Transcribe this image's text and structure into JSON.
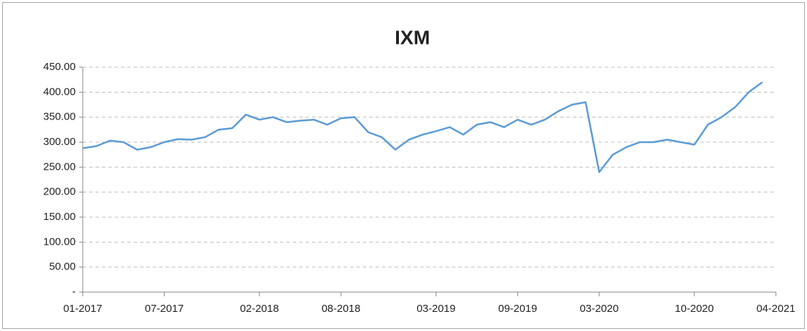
{
  "chart_data": {
    "type": "line",
    "title": "IXM",
    "x": [
      "2017-01",
      "2017-02",
      "2017-03",
      "2017-04",
      "2017-05",
      "2017-06",
      "2017-07",
      "2017-08",
      "2017-09",
      "2017-10",
      "2017-11",
      "2017-12",
      "2018-01",
      "2018-02",
      "2018-03",
      "2018-04",
      "2018-05",
      "2018-06",
      "2018-07",
      "2018-08",
      "2018-09",
      "2018-10",
      "2018-11",
      "2018-12",
      "2019-01",
      "2019-02",
      "2019-03",
      "2019-04",
      "2019-05",
      "2019-06",
      "2019-07",
      "2019-08",
      "2019-09",
      "2019-10",
      "2019-11",
      "2019-12",
      "2020-01",
      "2020-02",
      "2020-03",
      "2020-04",
      "2020-05",
      "2020-06",
      "2020-07",
      "2020-08",
      "2020-09",
      "2020-10",
      "2020-11",
      "2020-12",
      "2021-01",
      "2021-02",
      "2021-03"
    ],
    "series": [
      {
        "name": "IXM",
        "color": "#5b9bd5",
        "values": [
          288,
          292,
          303,
          300,
          285,
          290,
          300,
          306,
          305,
          310,
          325,
          328,
          355,
          345,
          350,
          340,
          343,
          345,
          335,
          348,
          350,
          320,
          310,
          285,
          305,
          315,
          322,
          330,
          315,
          335,
          340,
          330,
          345,
          335,
          345,
          362,
          375,
          380,
          240,
          275,
          290,
          300,
          300,
          305,
          300,
          295,
          335,
          350,
          370,
          400,
          420
        ]
      }
    ],
    "xlim": [
      "2017-01",
      "2021-04"
    ],
    "xticks": [
      {
        "value": "2017-01",
        "label": "01-2017"
      },
      {
        "value": "2017-07",
        "label": "07-2017"
      },
      {
        "value": "2018-02",
        "label": "02-2018"
      },
      {
        "value": "2018-08",
        "label": "08-2018"
      },
      {
        "value": "2019-03",
        "label": "03-2019"
      },
      {
        "value": "2019-09",
        "label": "09-2019"
      },
      {
        "value": "2020-03",
        "label": "03-2020"
      },
      {
        "value": "2020-10",
        "label": "10-2020"
      },
      {
        "value": "2021-04",
        "label": "04-2021"
      }
    ],
    "ylim": [
      0,
      450
    ],
    "yticks": [
      {
        "value": 0,
        "label": "-"
      },
      {
        "value": 50,
        "label": "50.00"
      },
      {
        "value": 100,
        "label": "100.00"
      },
      {
        "value": 150,
        "label": "150.00"
      },
      {
        "value": 200,
        "label": "200.00"
      },
      {
        "value": 250,
        "label": "250.00"
      },
      {
        "value": 300,
        "label": "300.00"
      },
      {
        "value": 350,
        "label": "350.00"
      },
      {
        "value": 400,
        "label": "400.00"
      },
      {
        "value": 450,
        "label": "450.00"
      }
    ],
    "grid": true
  }
}
